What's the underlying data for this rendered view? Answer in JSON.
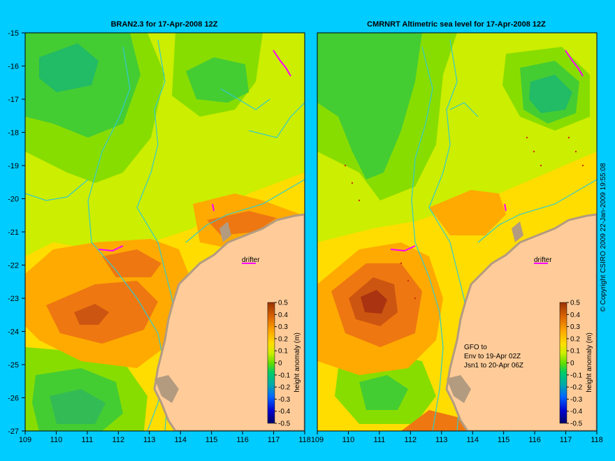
{
  "chart_data": [
    {
      "type": "heatmap",
      "title": "BRAN2.3 for 17-Apr-2008 12Z",
      "xlabel": "",
      "ylabel": "",
      "xlim": [
        109,
        118
      ],
      "ylim": [
        -27,
        -15
      ],
      "x_ticks": [
        "109",
        "110",
        "111",
        "112",
        "113",
        "114",
        "115",
        "116",
        "117",
        "118"
      ],
      "y_ticks": [
        "-15",
        "-16",
        "-17",
        "-18",
        "-19",
        "-20",
        "-21",
        "-22",
        "-23",
        "-24",
        "-25",
        "-26",
        "-27"
      ],
      "colorbar": {
        "label": "height anomaly (m)",
        "range": [
          -0.5,
          0.5
        ],
        "ticks": [
          "0.5",
          "0.4",
          "0.3",
          "0.2",
          "0.1",
          "0",
          "-0.1",
          "-0.2",
          "-0.3",
          "-0.4",
          "-0.5"
        ]
      },
      "features": [
        {
          "name": "high",
          "lon": 111.1,
          "lat": -23.5,
          "value": 0.35
        },
        {
          "name": "high",
          "lon": 112.2,
          "lat": -21.6,
          "value": 0.2
        },
        {
          "name": "high",
          "lon": 114.8,
          "lat": -20.9,
          "value": 0.2
        },
        {
          "name": "low",
          "lon": 110.3,
          "lat": -16.1,
          "value": -0.15
        },
        {
          "name": "low",
          "lon": 110.5,
          "lat": -25.8,
          "value": -0.1
        },
        {
          "name": "low",
          "lon": 114.0,
          "lat": -16.3,
          "value": -0.08
        }
      ],
      "annotations": [
        {
          "text": "drifter",
          "lon": 116.2,
          "lat": -21.8
        }
      ]
    },
    {
      "type": "heatmap",
      "title": "CMRNRT Altimetric sea level  for 17-Apr-2008 12Z",
      "xlabel": "",
      "ylabel": "",
      "xlim": [
        109,
        118
      ],
      "ylim": [
        -27,
        -15
      ],
      "x_ticks": [
        "109",
        "110",
        "111",
        "112",
        "113",
        "114",
        "115",
        "116",
        "117",
        "118"
      ],
      "y_ticks": [],
      "colorbar": {
        "label": "height anomaly (m)",
        "range": [
          -0.5,
          0.5
        ],
        "ticks": [
          "0.5",
          "0.4",
          "0.3",
          "0.2",
          "0.1",
          "0",
          "-0.1",
          "-0.2",
          "-0.3",
          "-0.4",
          "-0.5"
        ]
      },
      "features": [
        {
          "name": "high",
          "lon": 110.7,
          "lat": -23.2,
          "value": 0.38
        },
        {
          "name": "high",
          "lon": 113.2,
          "lat": -20.6,
          "value": 0.18
        },
        {
          "name": "high",
          "lon": 112.5,
          "lat": -27.0,
          "value": 0.3
        },
        {
          "name": "low",
          "lon": 116.5,
          "lat": -17.0,
          "value": -0.15
        },
        {
          "name": "low",
          "lon": 111.2,
          "lat": -18.2,
          "value": -0.12
        },
        {
          "name": "low",
          "lon": 110.8,
          "lat": -25.8,
          "value": -0.05
        }
      ],
      "annotations": [
        {
          "text": "drifter",
          "lon": 116.2,
          "lat": -21.8
        },
        {
          "text": "GFO to",
          "lon": 113.7,
          "lat": -24.6
        },
        {
          "text": "Env to 19-Apr 02Z",
          "lon": 113.7,
          "lat": -24.9
        },
        {
          "text": "Jsn1 to 20-Apr 06Z",
          "lon": 113.7,
          "lat": -25.2
        }
      ]
    }
  ],
  "copyright": "© Copyright CSIRO 2009  22-Jan-2009 19:55:08",
  "colors": {
    "page_background": "#00ccff",
    "land": "#ffcc99",
    "coast": "#b39b80",
    "isobath": "#33cccc",
    "drifter_track": "#ff00ff"
  }
}
